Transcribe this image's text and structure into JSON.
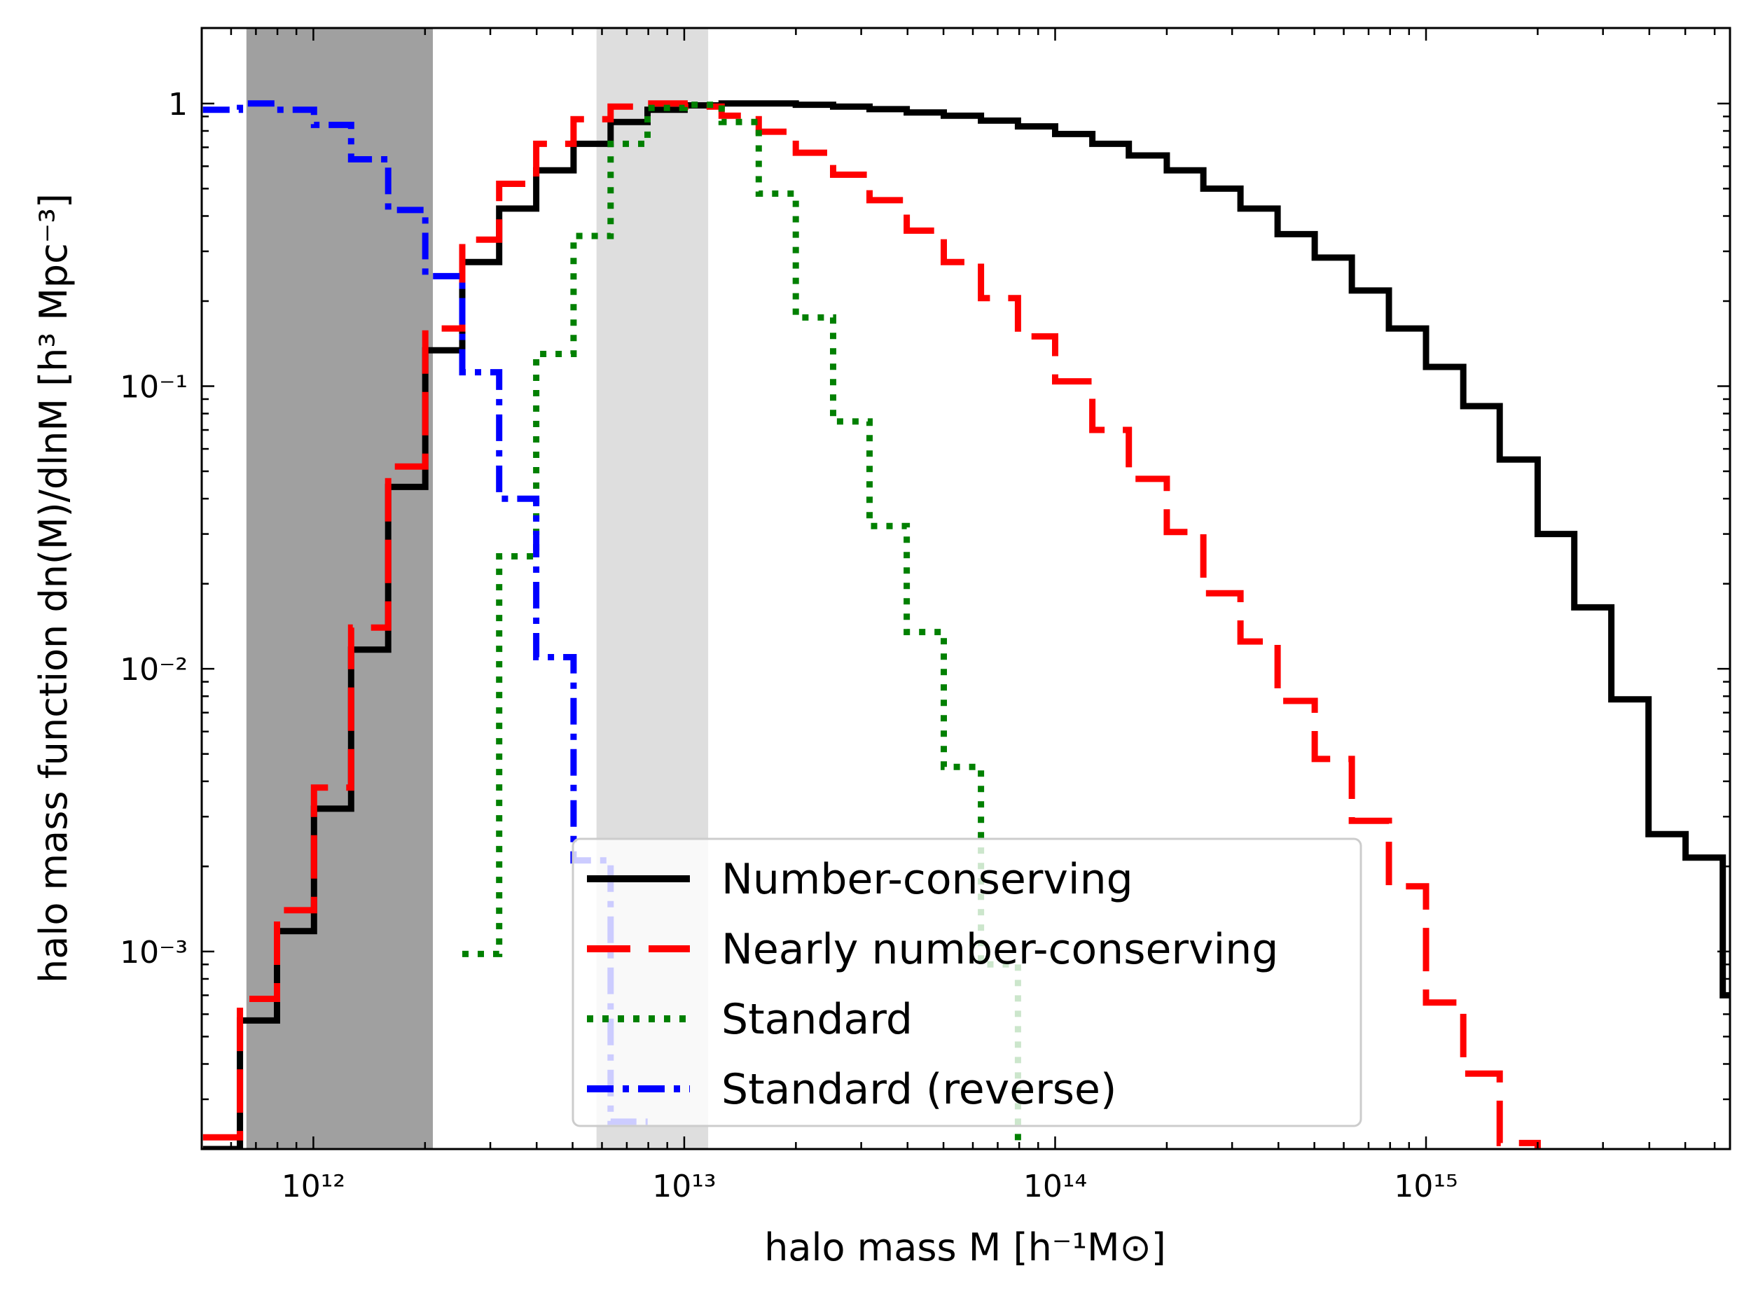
{
  "chart_data": {
    "type": "line",
    "xlabel": "halo mass M [h⁻¹M⊙]",
    "ylabel": "halo mass function dn(M)/dlnM  [h³ Mpc⁻³]",
    "xscale": "log",
    "yscale": "log",
    "xlim": [
      500000000000.0,
      6600000000000000.0
    ],
    "ylim": [
      0.0002,
      1.85
    ],
    "x_ticks": [
      {
        "value": 1000000000000.0,
        "label": "10¹²"
      },
      {
        "value": 10000000000000.0,
        "label": "10¹³"
      },
      {
        "value": 100000000000000.0,
        "label": "10¹⁴"
      },
      {
        "value": 1000000000000000.0,
        "label": "10¹⁵"
      }
    ],
    "y_ticks": [
      {
        "value": 1,
        "label": "1"
      },
      {
        "value": 0.1,
        "label": "10⁻¹"
      },
      {
        "value": 0.01,
        "label": "10⁻²"
      },
      {
        "value": 0.001,
        "label": "10⁻³"
      }
    ],
    "shaded_regions": [
      {
        "x": [
          660000000000.0,
          2100000000000.0
        ],
        "color": "#a0a0a0"
      },
      {
        "x": [
          5800000000000.0,
          11600000000000.0
        ],
        "color": "#dedede"
      }
    ],
    "legend_position": "lower center",
    "series": [
      {
        "name": "Number-conserving",
        "color": "#000000",
        "style": "solid",
        "x_edges": [
          504000000000.0,
          634000000000.0,
          798000000000.0,
          1004000000000.0,
          1264000000000.0,
          1591000000000.0,
          2003000000000.0,
          2520000000000.0,
          3170000000000.0,
          3990000000000.0,
          5030000000000.0,
          6330000000000.0,
          7960000000000.0,
          10020000000000.0,
          12610000000000.0,
          15880000000000.0,
          19990000000000.0,
          25200000000000.0,
          31600000000000.0,
          39800000000000.0,
          50100000000000.0,
          63100000000000.0,
          79400000000000.0,
          100000000000000.0,
          126000000000000.0,
          158000000000000.0,
          200000000000000.0,
          251000000000000.0,
          316000000000000.0,
          398000000000000.0,
          501000000000000.0,
          631000000000000.0,
          794000000000000.0,
          1000000000000000.0,
          1260000000000000.0,
          1580000000000000.0,
          2000000000000000.0,
          2510000000000000.0,
          3160000000000000.0,
          3980000000000000.0,
          5010000000000000.0,
          6310000000000000.0
        ],
        "values": [
          0.0002,
          0.00057,
          0.00118,
          0.0032,
          0.0117,
          0.044,
          0.134,
          0.275,
          0.425,
          0.58,
          0.72,
          0.86,
          0.95,
          0.985,
          1.0,
          1.0,
          0.99,
          0.975,
          0.955,
          0.93,
          0.905,
          0.87,
          0.83,
          0.78,
          0.72,
          0.655,
          0.58,
          0.5,
          0.425,
          0.345,
          0.285,
          0.218,
          0.16,
          0.117,
          0.085,
          0.055,
          0.03,
          0.0165,
          0.0078,
          0.0026,
          0.00215,
          0.0007
        ]
      },
      {
        "name": "Nearly number-conserving",
        "color": "#ff0000",
        "style": "dashed",
        "x_edges": [
          504000000000.0,
          634000000000.0,
          798000000000.0,
          1004000000000.0,
          1264000000000.0,
          1591000000000.0,
          2003000000000.0,
          2520000000000.0,
          3170000000000.0,
          3990000000000.0,
          5030000000000.0,
          6330000000000.0,
          7960000000000.0,
          10020000000000.0,
          12610000000000.0,
          15880000000000.0,
          19990000000000.0,
          25200000000000.0,
          31600000000000.0,
          39800000000000.0,
          50100000000000.0,
          63100000000000.0,
          79400000000000.0,
          100000000000000.0,
          126000000000000.0,
          158000000000000.0,
          200000000000000.0,
          251000000000000.0,
          316000000000000.0,
          398000000000000.0,
          501000000000000.0,
          631000000000000.0,
          794000000000000.0,
          1000000000000000.0,
          1260000000000000.0,
          1580000000000000.0,
          2000000000000000.0
        ],
        "values": [
          0.00022,
          0.00068,
          0.0014,
          0.0038,
          0.014,
          0.052,
          0.16,
          0.33,
          0.52,
          0.72,
          0.88,
          0.975,
          1.0,
          0.975,
          0.905,
          0.795,
          0.67,
          0.56,
          0.455,
          0.355,
          0.275,
          0.205,
          0.15,
          0.104,
          0.07,
          0.047,
          0.0305,
          0.0185,
          0.0125,
          0.0077,
          0.0048,
          0.0029,
          0.0017,
          0.00066,
          0.00037,
          0.00021,
          0.00012
        ]
      },
      {
        "name": "Standard",
        "color": "#008000",
        "style": "dotted",
        "x_edges": [
          2520000000000.0,
          3170000000000.0,
          3990000000000.0,
          5030000000000.0,
          6330000000000.0,
          7960000000000.0,
          10020000000000.0,
          12610000000000.0,
          15880000000000.0,
          19990000000000.0,
          25200000000000.0,
          31600000000000.0,
          39800000000000.0,
          50100000000000.0,
          63100000000000.0,
          79400000000000.0
        ],
        "values": [
          0.00098,
          0.025,
          0.13,
          0.34,
          0.72,
          0.965,
          0.99,
          0.86,
          0.48,
          0.175,
          0.075,
          0.032,
          0.0135,
          0.0045,
          0.0009,
          0.00012
        ]
      },
      {
        "name": "Standard (reverse)",
        "color": "#0000ff",
        "style": "dashdot",
        "x_edges": [
          504000000000.0,
          634000000000.0,
          798000000000.0,
          1004000000000.0,
          1264000000000.0,
          1591000000000.0,
          2003000000000.0,
          2520000000000.0,
          3170000000000.0,
          3990000000000.0,
          5030000000000.0,
          6330000000000.0
        ],
        "values": [
          0.95,
          1.0,
          0.95,
          0.84,
          0.635,
          0.42,
          0.245,
          0.112,
          0.04,
          0.011,
          0.0021,
          0.00025
        ]
      }
    ]
  }
}
